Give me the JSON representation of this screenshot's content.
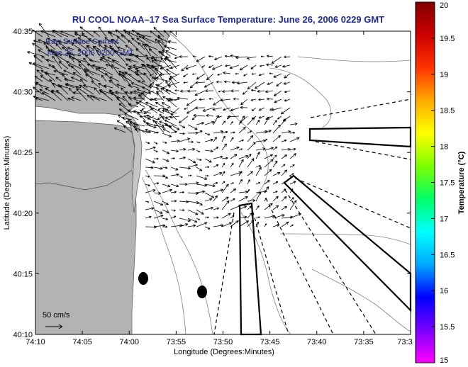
{
  "title": "RU COOL   NOAA–17  Sea Surface Temperature:  June 26, 2006 0229 GMT",
  "inset_text": [
    "Raw Surface Current",
    "June 26, 2006 0200 GMT"
  ],
  "scale_label": "50 cm/s",
  "x_axis": {
    "label": "Longitude (Degrees:Minutes)",
    "ticks": [
      "74:10",
      "74:05",
      "74:00",
      "73:55",
      "73:50",
      "73:45",
      "73:40",
      "73:35",
      "73:3"
    ]
  },
  "y_axis": {
    "label": "Latitude (Degrees:Minutes)",
    "ticks": [
      "40:35",
      "40:30",
      "40:25",
      "40:20",
      "40:15",
      "40:10"
    ]
  },
  "colorbar": {
    "label": "Temperature (°C)",
    "ticks": [
      "20",
      "19.5",
      "19",
      "18.5",
      "18",
      "17.5",
      "17",
      "16.5",
      "16",
      "15.5",
      "15"
    ],
    "colors": [
      "#ff00ff",
      "#7a00ff",
      "#0000ff",
      "#00aaff",
      "#00ffff",
      "#00ff66",
      "#7dff00",
      "#ffff00",
      "#ffaa00",
      "#ff3300",
      "#cc0000",
      "#800000"
    ]
  }
}
